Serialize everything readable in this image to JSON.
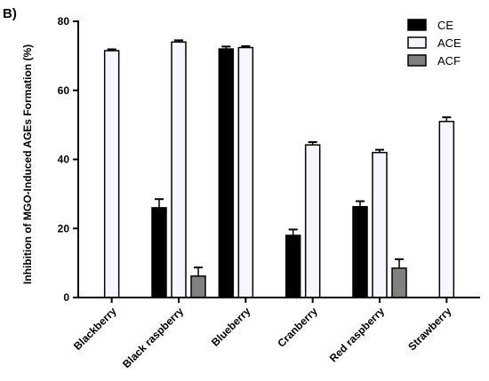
{
  "panel_label": "B)",
  "colors": {
    "CE": "#000000",
    "ACE": "#f6f6ff",
    "ACF": "#808080"
  },
  "chart_data": {
    "type": "bar",
    "title": "",
    "xlabel": "",
    "ylabel": "Inhibition of MGO-Induced AGEs Formation (%)",
    "ylim": [
      0,
      80
    ],
    "yticks": [
      0,
      20,
      40,
      60,
      80
    ],
    "categories": [
      "Blackberry",
      "Black raspberry",
      "Blueberry",
      "Cranberry",
      "Red raspberry",
      "Strawberry"
    ],
    "legend_position": "top-right",
    "series": [
      {
        "name": "CE",
        "values": [
          null,
          26,
          72,
          18,
          26.3,
          null
        ],
        "errors": [
          null,
          2.5,
          0.7,
          1.7,
          1.6,
          null
        ]
      },
      {
        "name": "ACE",
        "values": [
          71.5,
          74,
          72.4,
          44.2,
          42,
          51
        ],
        "errors": [
          0.4,
          0.5,
          0.4,
          0.8,
          0.8,
          1.2
        ]
      },
      {
        "name": "ACF",
        "values": [
          null,
          6.2,
          null,
          null,
          8.5,
          null
        ],
        "errors": [
          null,
          2.5,
          null,
          null,
          2.6,
          null
        ]
      }
    ]
  }
}
